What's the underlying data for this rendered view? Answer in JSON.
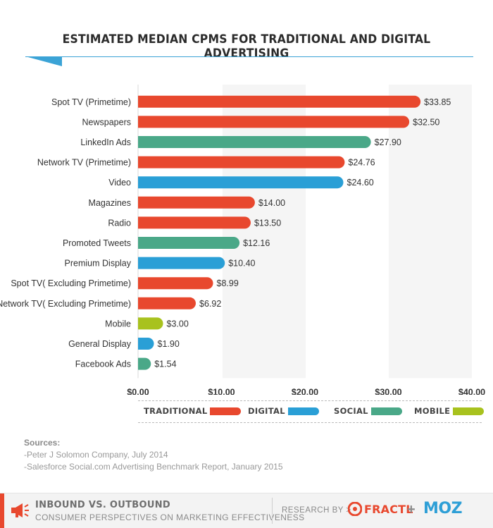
{
  "title": "ESTIMATED MEDIAN CPMS FOR TRADITIONAL AND DIGITAL ADVERTISING",
  "colors": {
    "traditional": "#e8482e",
    "digital": "#2a9fd6",
    "social": "#4aa888",
    "mobile": "#a8c21e",
    "accent": "#3ba3d6"
  },
  "chart_data": {
    "type": "bar",
    "orientation": "horizontal",
    "categories": [
      "Spot TV (Primetime)",
      "Newspapers",
      "LinkedIn Ads",
      "Network TV (Primetime)",
      "Video",
      "Magazines",
      "Radio",
      "Promoted Tweets",
      "Premium Display",
      "Spot TV( Excluding Primetime)",
      "Network TV( Excluding Primetime)",
      "Mobile",
      "General Display",
      "Facebook Ads"
    ],
    "values": [
      33.85,
      32.5,
      27.9,
      24.76,
      24.6,
      14.0,
      13.5,
      12.16,
      10.4,
      8.99,
      6.92,
      3.0,
      1.9,
      1.54
    ],
    "value_labels": [
      "$33.85",
      "$32.50",
      "$27.90",
      "$24.76",
      "$24.60",
      "$14.00",
      "$13.50",
      "$12.16",
      "$10.40",
      "$8.99",
      "$6.92",
      "$3.00",
      "$1.90",
      "$1.54"
    ],
    "groups": [
      "traditional",
      "traditional",
      "social",
      "traditional",
      "digital",
      "traditional",
      "traditional",
      "social",
      "digital",
      "traditional",
      "traditional",
      "mobile",
      "digital",
      "social"
    ],
    "xlim": [
      0,
      40
    ],
    "xticks": [
      "$0.00",
      "$10.00",
      "$20.00",
      "$30.00",
      "$40.00"
    ],
    "grid": false,
    "legend_position": "bottom",
    "legend": [
      {
        "key": "traditional",
        "label": "TRADITIONAL"
      },
      {
        "key": "digital",
        "label": "DIGITAL"
      },
      {
        "key": "social",
        "label": "SOCIAL"
      },
      {
        "key": "mobile",
        "label": "MOBILE"
      }
    ]
  },
  "sources": {
    "heading": "Sources:",
    "items": [
      "-Peter J Solomon Company, July 2014",
      "-Salesforce Social.com Advertising Benchmark Report, January 2015"
    ]
  },
  "footer": {
    "title": "INBOUND VS. OUTBOUND",
    "subtitle": "CONSUMER PERSPECTIVES ON MARKETING EFFECTIVENESS",
    "research_by": "RESEARCH BY >",
    "fractl": "FRACTL",
    "plus": "+",
    "moz": "MOZ"
  }
}
